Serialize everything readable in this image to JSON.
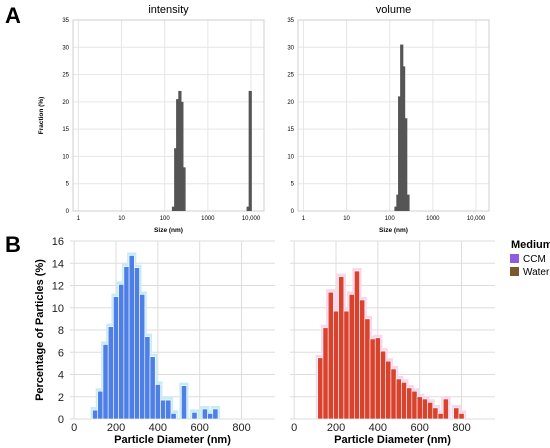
{
  "panel_labels": {
    "a": "A",
    "b": "B"
  },
  "colors": {
    "dls_bar": "#555555",
    "ccm_bar": "#4d7fe6",
    "ccm_halo": "#c8ecf6",
    "water_bar": "#d9432e",
    "water_halo": "#f7d6ee",
    "legend_ccm": "#8f5be0",
    "legend_water": "#7a5a2a",
    "grid": "#dddddd"
  },
  "legend": {
    "title": "Medium",
    "items": [
      "CCM",
      "Water"
    ]
  },
  "chart_data": [
    {
      "id": "a1",
      "type": "bar",
      "title": "intensity",
      "xlabel": "Size (nm)",
      "ylabel": "Fraction (%)",
      "xscale": "log",
      "xlim": [
        0.75,
        20000
      ],
      "ylim": [
        0,
        35
      ],
      "xticks": [
        1,
        10,
        100,
        1000,
        10000
      ],
      "xtick_labels": [
        "1",
        "10",
        "100",
        "1000",
        "10,000"
      ],
      "yticks": [
        0,
        5,
        10,
        15,
        20,
        25,
        30,
        35
      ],
      "x": [
        160,
        180,
        200,
        225,
        250,
        280,
        8600,
        9600
      ],
      "values": [
        0.8,
        11.5,
        20.5,
        22.0,
        20.0,
        8.0,
        0.8,
        22.0
      ]
    },
    {
      "id": "a2",
      "type": "bar",
      "title": "volume",
      "xlabel": "Size (nm)",
      "ylabel": "",
      "xscale": "log",
      "xlim": [
        0.75,
        20000
      ],
      "ylim": [
        0,
        35
      ],
      "xticks": [
        1,
        10,
        100,
        1000,
        10000
      ],
      "xtick_labels": [
        "1",
        "10",
        "100",
        "1000",
        "10,000"
      ],
      "yticks": [
        0,
        5,
        10,
        15,
        20,
        25,
        30,
        35
      ],
      "x": [
        140,
        155,
        170,
        190,
        210,
        235,
        265
      ],
      "values": [
        0.8,
        3.0,
        21.0,
        30.5,
        26.5,
        17.0,
        3.0
      ]
    },
    {
      "id": "b1",
      "type": "bar",
      "title": "",
      "xlabel": "Particle Diameter (nm)",
      "ylabel": "Percentage of Particles (%)",
      "xlim": [
        -20,
        960
      ],
      "ylim": [
        0,
        16
      ],
      "xticks": [
        0,
        200,
        400,
        600,
        800
      ],
      "yticks": [
        0,
        2,
        4,
        6,
        8,
        10,
        12,
        14,
        16
      ],
      "bin_width": 25,
      "series": [
        {
          "name": "CCM",
          "x": [
            100,
            125,
            150,
            175,
            200,
            225,
            250,
            275,
            300,
            325,
            350,
            375,
            400,
            425,
            450,
            475,
            525,
            575,
            625,
            650,
            675
          ],
          "values": [
            0.8,
            2.5,
            6.7,
            8.3,
            11.0,
            12.1,
            13.7,
            14.7,
            13.6,
            11.2,
            7.4,
            5.6,
            3.1,
            1.7,
            1.7,
            0.5,
            3.0,
            0.6,
            0.9,
            0.5,
            0.9
          ]
        }
      ]
    },
    {
      "id": "b2",
      "type": "bar",
      "title": "",
      "xlabel": "Particle Diameter (nm)",
      "ylabel": "",
      "xlim": [
        -20,
        960
      ],
      "ylim": [
        0,
        16
      ],
      "xticks": [
        0,
        200,
        400,
        600,
        800
      ],
      "yticks": [
        0,
        2,
        4,
        6,
        8,
        10,
        12,
        14,
        16
      ],
      "bin_width": 25,
      "series": [
        {
          "name": "Water",
          "x": [
            125,
            150,
            175,
            200,
            225,
            250,
            275,
            300,
            325,
            350,
            375,
            400,
            425,
            450,
            475,
            500,
            525,
            550,
            575,
            600,
            625,
            650,
            675,
            700,
            725,
            775,
            800
          ],
          "values": [
            5.5,
            8.2,
            11.4,
            9.7,
            12.8,
            9.7,
            11.2,
            13.3,
            10.7,
            9.0,
            7.2,
            7.3,
            6.1,
            5.2,
            4.5,
            3.6,
            3.3,
            2.8,
            2.5,
            2.0,
            1.8,
            1.5,
            1.0,
            0.5,
            1.8,
            1.0,
            0.5
          ]
        }
      ]
    }
  ]
}
